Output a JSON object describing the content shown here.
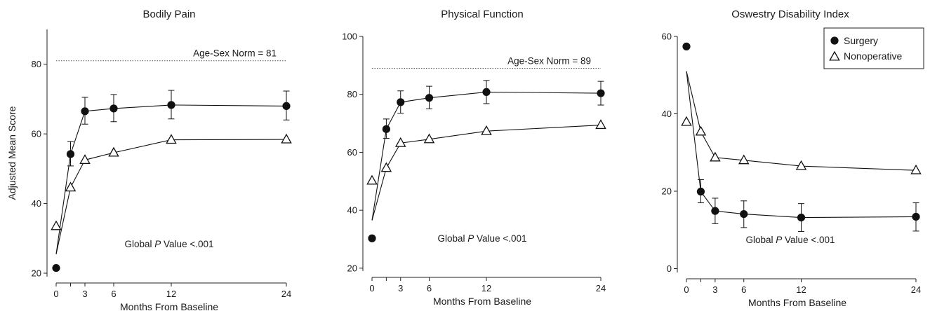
{
  "chart_data": [
    {
      "type": "line",
      "title": "Bodily Pain",
      "xlabel": "Months From Baseline",
      "ylabel": "Adjusted Mean Score",
      "xticks": [
        0,
        3,
        6,
        12,
        24
      ],
      "xlim": [
        0,
        24
      ],
      "yticks": [
        20,
        40,
        60,
        80
      ],
      "ylim": [
        19,
        90
      ],
      "norm": {
        "label": "Age-Sex Norm = 81",
        "value": 81
      },
      "annotation": {
        "prefix": "Global ",
        "italic": "P",
        "suffix": " Value <.001"
      },
      "series": [
        {
          "key": "surgery",
          "baseline": 21.5,
          "start": 25.5,
          "x": [
            1.5,
            3,
            6,
            12,
            24
          ],
          "values": [
            54.2,
            66.5,
            67.3,
            68.3,
            68.0
          ],
          "err_hi": [
            57.8,
            70.5,
            71.3,
            72.5,
            72.3
          ],
          "err_lo": [
            50.8,
            62.8,
            63.5,
            64.3,
            64.0
          ]
        },
        {
          "key": "nonoperative",
          "baseline": 33.5,
          "start": 25.5,
          "x": [
            1.5,
            3,
            6,
            12,
            24
          ],
          "values": [
            44.6,
            52.5,
            54.6,
            58.3,
            58.4
          ]
        }
      ]
    },
    {
      "type": "line",
      "title": "Physical Function",
      "xlabel": "Months From Baseline",
      "ylabel": "",
      "xticks": [
        0,
        3,
        6,
        12,
        24
      ],
      "xlim": [
        0,
        24
      ],
      "yticks": [
        20,
        40,
        60,
        80,
        100
      ],
      "ylim": [
        19,
        100
      ],
      "norm": {
        "label": "Age-Sex Norm = 89",
        "value": 89
      },
      "annotation": {
        "prefix": "Global ",
        "italic": "P",
        "suffix": " Value <.001"
      },
      "series": [
        {
          "key": "surgery",
          "baseline": 30.3,
          "start": 36.5,
          "x": [
            1.5,
            3,
            6,
            12,
            24
          ],
          "values": [
            68.0,
            77.3,
            78.8,
            80.8,
            80.4
          ],
          "err_hi": [
            71.5,
            81.2,
            82.8,
            84.8,
            84.5
          ],
          "err_lo": [
            64.8,
            73.5,
            75.0,
            76.8,
            76.3
          ]
        },
        {
          "key": "nonoperative",
          "baseline": 50.2,
          "start": 36.5,
          "x": [
            1.5,
            3,
            6,
            12,
            24
          ],
          "values": [
            54.6,
            63.2,
            64.5,
            67.3,
            69.4
          ]
        }
      ]
    },
    {
      "type": "line",
      "title": "Oswestry Disability Index",
      "xlabel": "Months From Baseline",
      "ylabel": "",
      "xticks": [
        0,
        3,
        6,
        12,
        24
      ],
      "xlim": [
        0,
        24
      ],
      "yticks": [
        0,
        20,
        40,
        60
      ],
      "ylim": [
        -1,
        60
      ],
      "annotation": {
        "prefix": "Global ",
        "italic": "P",
        "suffix": " Value <.001"
      },
      "legend": {
        "position": "top-right",
        "entries": [
          {
            "key": "surgery",
            "label": "Surgery",
            "marker": "filled-circle"
          },
          {
            "key": "nonoperative",
            "label": "Nonoperative",
            "marker": "open-triangle"
          }
        ]
      },
      "series": [
        {
          "key": "surgery",
          "baseline": 57.4,
          "start": 51.0,
          "x": [
            1.5,
            3,
            6,
            12,
            24
          ],
          "values": [
            19.9,
            14.9,
            14.1,
            13.2,
            13.4
          ],
          "err_hi": [
            23.0,
            18.2,
            17.5,
            16.8,
            17.0
          ],
          "err_lo": [
            17.0,
            11.6,
            10.6,
            9.6,
            9.7
          ]
        },
        {
          "key": "nonoperative",
          "baseline": 37.9,
          "start": 51.0,
          "x": [
            1.5,
            3,
            6,
            12,
            24
          ],
          "values": [
            35.4,
            28.7,
            28.0,
            26.5,
            25.4
          ]
        }
      ]
    }
  ]
}
